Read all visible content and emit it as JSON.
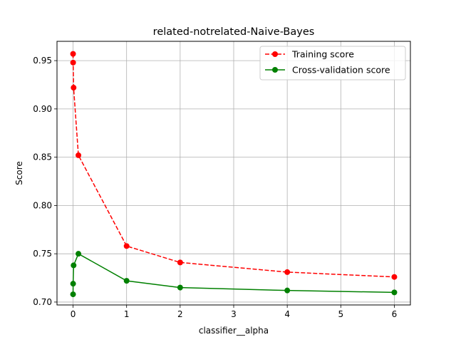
{
  "chart_data": {
    "type": "line",
    "title": "related-notrelated-Naive-Bayes",
    "xlabel": "classifier__alpha",
    "ylabel": "Score",
    "xlim": [
      -0.3,
      6.3
    ],
    "ylim": [
      0.697,
      0.97
    ],
    "xticks": [
      0,
      1,
      2,
      3,
      4,
      5,
      6
    ],
    "xtick_labels": [
      "0",
      "1",
      "2",
      "3",
      "4",
      "5",
      "6"
    ],
    "yticks": [
      0.7,
      0.75,
      0.8,
      0.85,
      0.9,
      0.95
    ],
    "ytick_labels": [
      "0.70",
      "0.75",
      "0.80",
      "0.85",
      "0.90",
      "0.95"
    ],
    "grid": true,
    "legend_position": "top-right",
    "series": [
      {
        "name": "Training score",
        "color": "#ff0000",
        "line_style": "dashed",
        "marker": "circle",
        "x": [
          0.0001,
          0.001,
          0.01,
          0.1,
          1,
          2,
          4,
          6
        ],
        "y": [
          0.957,
          0.948,
          0.922,
          0.852,
          0.758,
          0.741,
          0.731,
          0.726
        ]
      },
      {
        "name": "Cross-validation score",
        "color": "#008000",
        "line_style": "solid",
        "marker": "circle",
        "x": [
          0.0001,
          0.001,
          0.01,
          0.1,
          1,
          2,
          4,
          6
        ],
        "y": [
          0.708,
          0.719,
          0.738,
          0.75,
          0.722,
          0.715,
          0.712,
          0.71
        ]
      }
    ]
  }
}
